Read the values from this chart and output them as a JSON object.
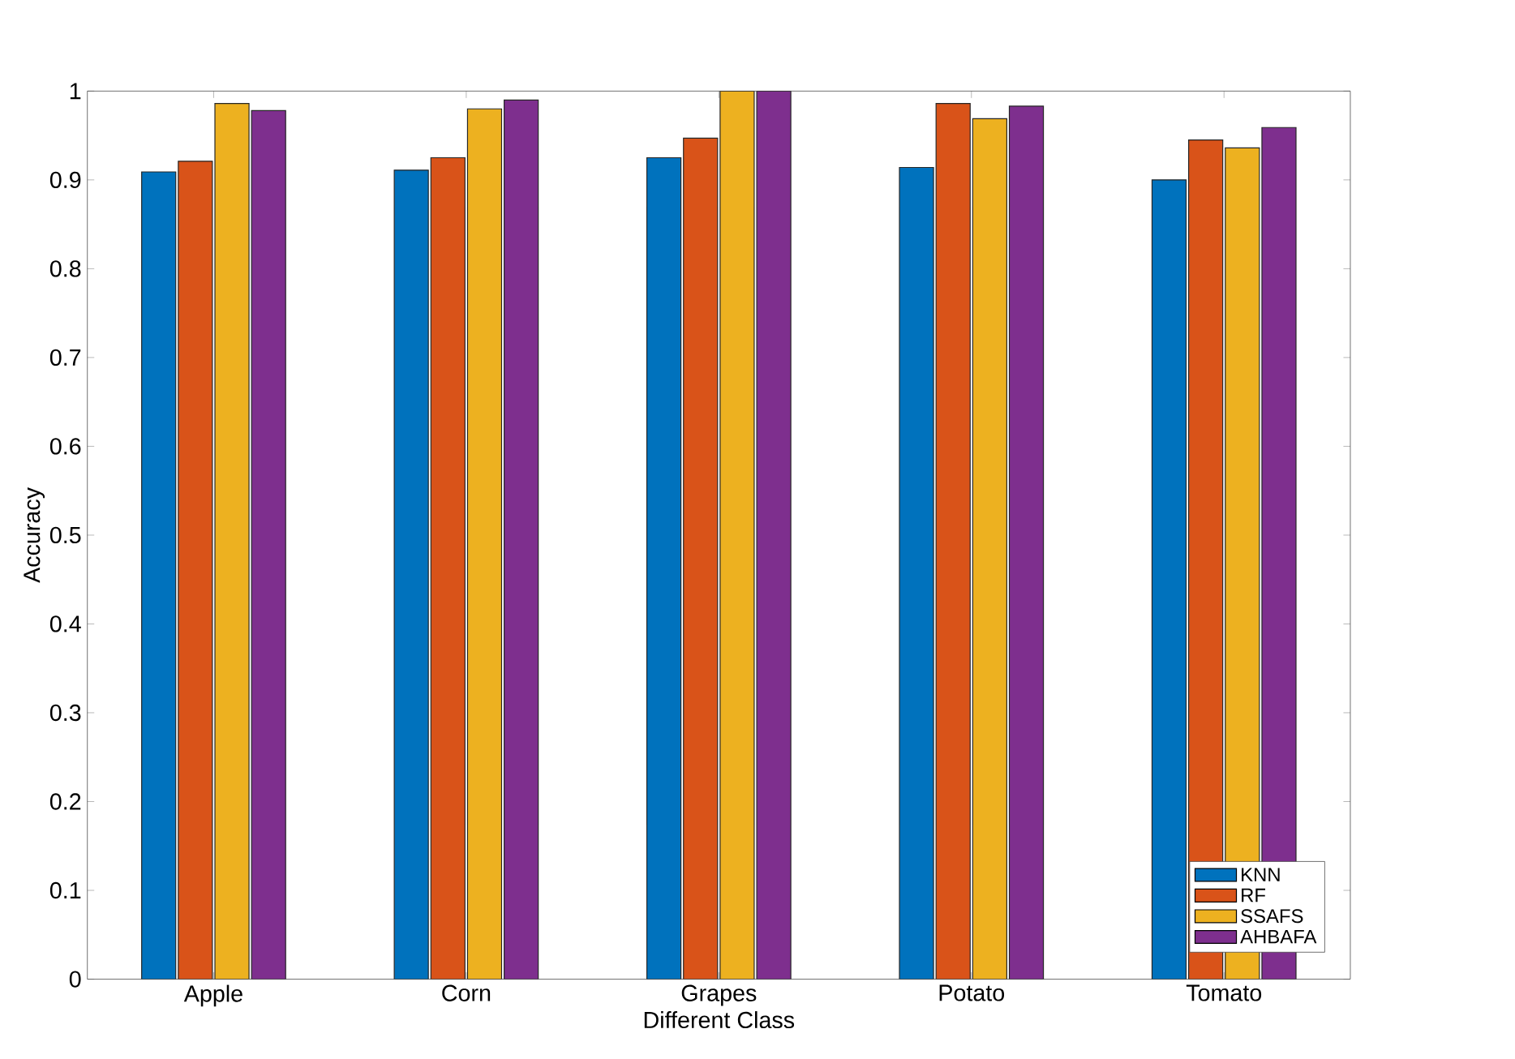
{
  "chart_data": {
    "type": "bar",
    "xlabel": "Different Class",
    "ylabel": "Accuracy",
    "categories": [
      "Apple",
      "Corn",
      "Grapes",
      "Potato",
      "Tomato"
    ],
    "series": [
      {
        "name": "KNN",
        "color": "#0072bd",
        "values": [
          0.909,
          0.911,
          0.925,
          0.914,
          0.9
        ]
      },
      {
        "name": "RF",
        "color": "#d95319",
        "values": [
          0.921,
          0.925,
          0.947,
          0.986,
          0.945
        ]
      },
      {
        "name": "SSAFS",
        "color": "#edb120",
        "values": [
          0.986,
          0.98,
          1.0,
          0.969,
          0.936
        ]
      },
      {
        "name": "AHBAFA",
        "color": "#7e2f8e",
        "values": [
          0.978,
          0.99,
          1.0,
          0.983,
          0.959
        ]
      }
    ],
    "ylim": [
      0,
      1
    ],
    "yticks": [
      0,
      0.1,
      0.2,
      0.3,
      0.4,
      0.5,
      0.6,
      0.7,
      0.8,
      0.9,
      1
    ],
    "legend": "bottom right",
    "grid": false
  }
}
